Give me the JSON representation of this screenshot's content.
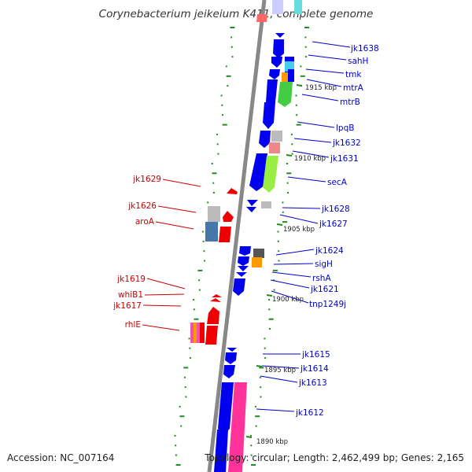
{
  "title": "Corynebacterium jeikeium K411, complete genome",
  "footer": {
    "accession": "Accession: NC_007164",
    "topology": "Topology: circular; Length: 2,462,499 bp; Genes: 2,165"
  },
  "colors": {
    "forward_gene": "#0000ee",
    "reverse_gene": "#ee0000",
    "forward_label": "#0000cc",
    "reverse_label": "#cc0000",
    "backbone": "#888888",
    "gc_marks": "#228b22"
  },
  "kbp_marks": [
    "1915 kbp",
    "1910 kbp",
    "1905 kbp",
    "1900 kbp",
    "1895 kbp",
    "1890 kbp"
  ],
  "forward_labels": [
    "jk1638",
    "sahH",
    "tmk",
    "mtrA",
    "mtrB",
    "lpqB",
    "jk1632",
    "jk1631",
    "secA",
    "jk1628",
    "jk1627",
    "jk1624",
    "sigH",
    "rshA",
    "jk1621",
    "tnp1249j",
    "jk1615",
    "jk1614",
    "jk1613",
    "jk1612"
  ],
  "reverse_labels": [
    "jk1629",
    "jk1626",
    "aroA",
    "jk1619",
    "whiB1",
    "jk1617",
    "rhlE"
  ]
}
